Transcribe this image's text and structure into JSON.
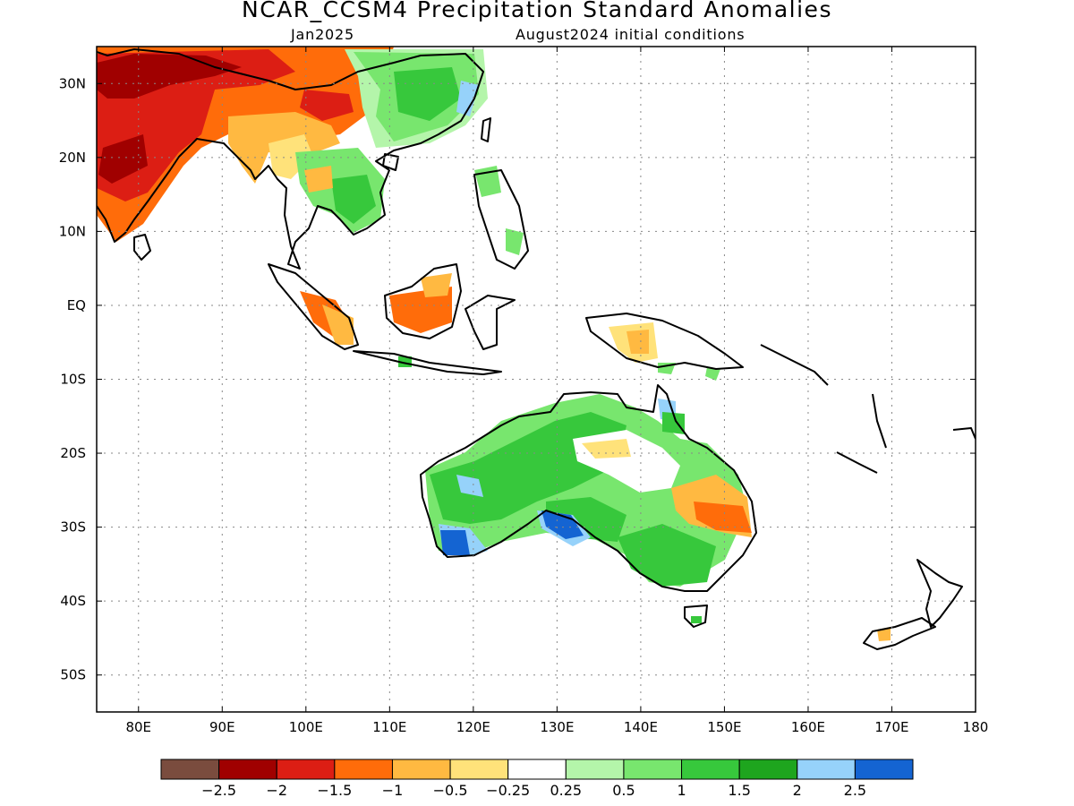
{
  "header": {
    "title": "NCAR_CCSM4 Precipitation Standard Anomalies",
    "valid_month": "Jan2025",
    "initial_conditions": "August2024 initial conditions"
  },
  "map": {
    "lon_range": [
      75,
      180
    ],
    "lat_range": [
      -55,
      35
    ],
    "lon_ticks": [
      {
        "v": 80,
        "label": "80E"
      },
      {
        "v": 90,
        "label": "90E"
      },
      {
        "v": 100,
        "label": "100E"
      },
      {
        "v": 110,
        "label": "110E"
      },
      {
        "v": 120,
        "label": "120E"
      },
      {
        "v": 130,
        "label": "130E"
      },
      {
        "v": 140,
        "label": "140E"
      },
      {
        "v": 150,
        "label": "150E"
      },
      {
        "v": 160,
        "label": "160E"
      },
      {
        "v": 170,
        "label": "170E"
      },
      {
        "v": 180,
        "label": "180"
      }
    ],
    "lat_ticks": [
      {
        "v": 30,
        "label": "30N"
      },
      {
        "v": 20,
        "label": "20N"
      },
      {
        "v": 10,
        "label": "10N"
      },
      {
        "v": 0,
        "label": "EQ"
      },
      {
        "v": -10,
        "label": "10S"
      },
      {
        "v": -20,
        "label": "20S"
      },
      {
        "v": -30,
        "label": "30S"
      },
      {
        "v": -40,
        "label": "40S"
      },
      {
        "v": -50,
        "label": "50S"
      }
    ],
    "grid": true
  },
  "colorbar": {
    "colors": [
      "#7a4c3e",
      "#a00000",
      "#dc1e14",
      "#ff6c0a",
      "#ffb941",
      "#ffe27a",
      "#ffffff",
      "#b4f5aa",
      "#78e66e",
      "#37c83c",
      "#1ea51e",
      "#96d2fa",
      "#1464d2"
    ],
    "labels": [
      "-2.5",
      "-2",
      "-1.5",
      "-1",
      "-0.5",
      "-0.25",
      "0.25",
      "0.5",
      "1",
      "1.5",
      "2",
      "2.5"
    ]
  },
  "anomaly_regions": [
    {
      "region": "India (north/central)",
      "lon": 80,
      "lat": 22,
      "category": "-1.5 to -2"
    },
    {
      "region": "India (northwest)",
      "lon": 78,
      "lat": 30,
      "category": "-1 to -1.5"
    },
    {
      "region": "Tibet / Himalaya",
      "lon": 88,
      "lat": 30,
      "category": "-1.5 to -2"
    },
    {
      "region": "Southwest China",
      "lon": 104,
      "lat": 28,
      "category": "-1 to -1.5"
    },
    {
      "region": "Myanmar",
      "lon": 97,
      "lat": 21,
      "category": "-0.5 to -1"
    },
    {
      "region": "Southeast China",
      "lon": 115,
      "lat": 27,
      "category": "0.5 to 1.5"
    },
    {
      "region": "Indochina",
      "lon": 105,
      "lat": 14,
      "category": "0.5 to 1"
    },
    {
      "region": "Sumatra",
      "lon": 102,
      "lat": -2,
      "category": "-0.5 to -1"
    },
    {
      "region": "Borneo",
      "lon": 114,
      "lat": 0,
      "category": "-1 to -1.5"
    },
    {
      "region": "New Guinea",
      "lon": 140,
      "lat": -6,
      "category": "-0.25 to -0.5"
    },
    {
      "region": "Western Australia",
      "lon": 122,
      "lat": -25,
      "category": "1 to 1.5"
    },
    {
      "region": "Southwest Australia",
      "lon": 117,
      "lat": -33,
      "category": "2 to 2.5"
    },
    {
      "region": "South Australia coast",
      "lon": 131,
      "lat": -31,
      "category": "2 to 2.5"
    },
    {
      "region": "Queensland interior",
      "lon": 138,
      "lat": -20,
      "category": "-0.25 to -0.5"
    },
    {
      "region": "Eastern Australia",
      "lon": 151,
      "lat": -28,
      "category": "-0.5 to -1"
    },
    {
      "region": "Victoria / NSW south",
      "lon": 146,
      "lat": -36,
      "category": "1 to 1.5"
    }
  ]
}
